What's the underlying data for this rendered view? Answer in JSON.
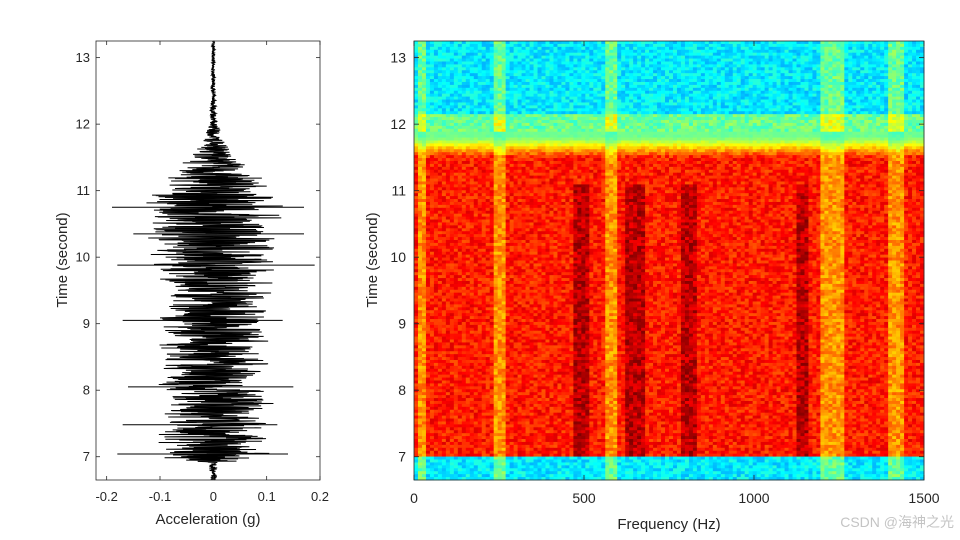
{
  "watermark": "CSDN @海神之光",
  "chart_data": [
    {
      "type": "line",
      "orientation": "vertical-time",
      "xlabel": "Acceleration (g)",
      "ylabel": "Time (second)",
      "xlim": [
        -0.22,
        0.2
      ],
      "ylim": [
        6.65,
        13.25
      ],
      "xticks": [
        -0.2,
        -0.1,
        0,
        0.1,
        0.2
      ],
      "xtick_labels": [
        "-0.2",
        "-0.1",
        "0",
        "0.1",
        "0.2"
      ],
      "yticks": [
        7,
        8,
        9,
        10,
        11,
        12,
        13
      ],
      "ytick_labels": [
        "7",
        "8",
        "9",
        "10",
        "11",
        "12",
        "13"
      ],
      "line_color": "#000000",
      "envelope": {
        "time": [
          6.65,
          6.9,
          7.0,
          7.1,
          7.5,
          8.0,
          8.5,
          9.0,
          9.5,
          10.0,
          10.5,
          10.8,
          11.0,
          11.3,
          11.5,
          11.7,
          12.0,
          12.5,
          13.0,
          13.25
        ],
        "amplitude": [
          0.008,
          0.01,
          0.14,
          0.11,
          0.12,
          0.115,
          0.11,
          0.115,
          0.12,
          0.13,
          0.14,
          0.15,
          0.12,
          0.085,
          0.05,
          0.025,
          0.01,
          0.005,
          0.004,
          0.004
        ]
      },
      "spikes": [
        {
          "time": 10.75,
          "min": -0.19,
          "max": 0.17
        },
        {
          "time": 9.88,
          "min": -0.18,
          "max": 0.19
        },
        {
          "time": 9.05,
          "min": -0.17,
          "max": 0.13
        },
        {
          "time": 7.48,
          "min": -0.17,
          "max": 0.12
        },
        {
          "time": 7.04,
          "min": -0.18,
          "max": 0.14
        },
        {
          "time": 8.05,
          "min": -0.16,
          "max": 0.15
        },
        {
          "time": 10.35,
          "min": -0.15,
          "max": 0.17
        }
      ]
    },
    {
      "type": "heatmap",
      "xlabel": "Frequency (Hz)",
      "ylabel": "Time (second)",
      "xlim": [
        0,
        1500
      ],
      "ylim": [
        6.65,
        13.25
      ],
      "xticks": [
        0,
        500,
        1000,
        1500
      ],
      "xtick_labels": [
        "0",
        "500",
        "1000",
        "1500"
      ],
      "yticks": [
        7,
        8,
        9,
        10,
        11,
        12,
        13
      ],
      "ytick_labels": [
        "7",
        "8",
        "9",
        "10",
        "11",
        "12",
        "13"
      ],
      "colormap": "jet",
      "quiet_level": 0.36,
      "active_level": 0.85,
      "active_time_range": [
        7.0,
        11.9
      ],
      "dark_bands_hz": [
        [
          470,
          510
        ],
        [
          620,
          680
        ],
        [
          790,
          830
        ],
        [
          1120,
          1160
        ]
      ],
      "bright_bands_hz": [
        [
          10,
          40
        ],
        [
          230,
          270
        ],
        [
          560,
          600
        ],
        [
          1200,
          1260
        ],
        [
          1400,
          1440
        ]
      ]
    }
  ]
}
